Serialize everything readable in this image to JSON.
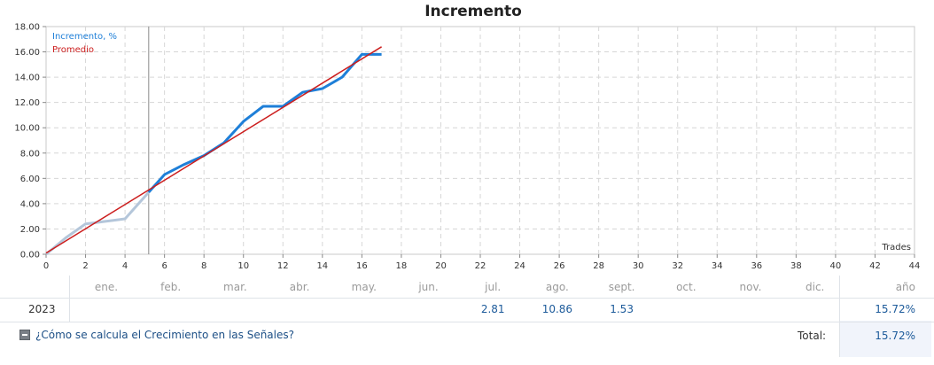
{
  "chart_data": {
    "type": "line",
    "title": "Incremento",
    "xlabel": "Trades",
    "ylabel": "",
    "xlim": [
      0,
      44
    ],
    "ylim": [
      0,
      18
    ],
    "x_ticks": [
      "0",
      "2",
      "4",
      "6",
      "8",
      "10",
      "12",
      "14",
      "16",
      "18",
      "20",
      "22",
      "24",
      "26",
      "28",
      "30",
      "32",
      "34",
      "36",
      "38",
      "40",
      "42",
      "44"
    ],
    "y_ticks": [
      "0.00",
      "2.00",
      "4.00",
      "6.00",
      "8.00",
      "10.00",
      "12.00",
      "14.00",
      "16.00",
      "18.00"
    ],
    "grid": true,
    "legend_position": "top-left",
    "marker_x": 5.2,
    "series": [
      {
        "name": "Incremento, %",
        "color": "#1e7fd8",
        "faded_color": "#b4c6da",
        "faded_until_x": 5.2,
        "x": [
          0,
          1,
          2,
          3,
          4,
          5.2,
          6,
          7,
          8,
          9,
          10,
          11,
          12,
          13,
          14,
          15,
          16,
          17
        ],
        "y": [
          0,
          1.3,
          2.4,
          2.6,
          2.8,
          4.9,
          6.3,
          7.1,
          7.8,
          8.8,
          10.5,
          11.7,
          11.7,
          12.8,
          13.1,
          14.0,
          15.8,
          15.8
        ]
      },
      {
        "name": "Promedio",
        "color": "#cc1e1e",
        "x": [
          0,
          17
        ],
        "y": [
          0.1,
          16.4
        ]
      }
    ]
  },
  "table": {
    "months": [
      "ene.",
      "feb.",
      "mar.",
      "abr.",
      "may.",
      "jun.",
      "jul.",
      "ago.",
      "sept.",
      "oct.",
      "nov.",
      "dic."
    ],
    "year_header": "año",
    "year": "2023",
    "values": [
      "",
      "",
      "",
      "",
      "",
      "",
      "2.81",
      "10.86",
      "1.53",
      "",
      "",
      ""
    ],
    "year_total": "15.72%",
    "total_label": "Total:",
    "total_value": "15.72%",
    "help_link": "¿Cómo se calcula el Crecimiento en las Señales?"
  }
}
